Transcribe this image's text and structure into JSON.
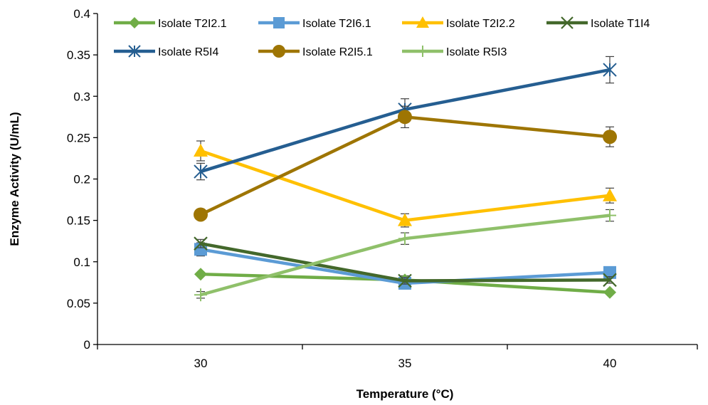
{
  "chart_data": {
    "type": "line",
    "title": "",
    "xlabel": "Temperature (°C)",
    "ylabel": "Enzyme Activity (U/mL)",
    "categories": [
      "30",
      "35",
      "40"
    ],
    "x_ticks": [
      "30",
      "35",
      "40"
    ],
    "y_ticks": [
      "0",
      "0.05",
      "0.1",
      "0.15",
      "0.2",
      "0.25",
      "0.3",
      "0.35",
      "0.4"
    ],
    "ylim": [
      0,
      0.4
    ],
    "grid": false,
    "legend_position": "top",
    "series": [
      {
        "name": "Isolate T2I2.1",
        "values": [
          0.085,
          0.078,
          0.063
        ],
        "errors": [
          0.0,
          0.005,
          0.0
        ],
        "color": "#70ad47",
        "marker": "diamond"
      },
      {
        "name": "Isolate T2I6.1",
        "values": [
          0.115,
          0.074,
          0.087
        ],
        "errors": [
          0.008,
          0.004,
          0.003
        ],
        "color": "#5b9bd5",
        "marker": "square"
      },
      {
        "name": "Isolate T2I2.2",
        "values": [
          0.234,
          0.15,
          0.18
        ],
        "errors": [
          0.012,
          0.008,
          0.009
        ],
        "color": "#ffc000",
        "marker": "triangle"
      },
      {
        "name": "Isolate T1I4",
        "values": [
          0.122,
          0.077,
          0.078
        ],
        "errors": [
          0.005,
          0.004,
          0.004
        ],
        "color": "#43682b",
        "marker": "x"
      },
      {
        "name": "Isolate R5I4",
        "values": [
          0.209,
          0.284,
          0.332
        ],
        "errors": [
          0.01,
          0.013,
          0.016
        ],
        "color": "#255e91",
        "marker": "star"
      },
      {
        "name": "Isolate R2I5.1",
        "values": [
          0.157,
          0.275,
          0.251
        ],
        "errors": [
          0.0,
          0.013,
          0.012
        ],
        "color": "#9e7503",
        "marker": "circle"
      },
      {
        "name": "Isolate R5I3",
        "values": [
          0.06,
          0.128,
          0.156
        ],
        "errors": [
          0.004,
          0.007,
          0.007
        ],
        "color": "#8fc06a",
        "marker": "plus"
      }
    ]
  }
}
